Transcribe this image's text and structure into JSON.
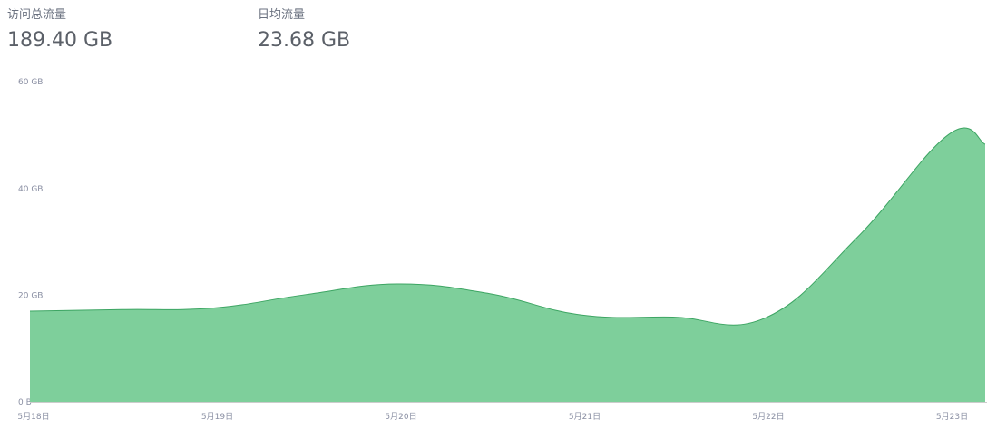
{
  "stats": {
    "total_label": "访问总流量",
    "total_value": "189.40 GB",
    "daily_label": "日均流量",
    "daily_value": "23.68 GB"
  },
  "chart_data": {
    "type": "area",
    "title": "",
    "xlabel": "",
    "ylabel": "",
    "x": [
      0,
      0.5,
      1,
      1.5,
      2,
      2.5,
      3,
      3.5,
      4,
      4.5,
      5,
      5.2
    ],
    "x_ticks": [
      0,
      1,
      2,
      3,
      4,
      5
    ],
    "categories": [
      "5月18日",
      "5月19日",
      "5月20日",
      "5月21日",
      "5月22日",
      "5月23日"
    ],
    "y_ticks": [
      0,
      20,
      40,
      60
    ],
    "y_tick_labels": [
      "0 B",
      "20 GB",
      "40 GB",
      "60 GB"
    ],
    "ylim": [
      0,
      60
    ],
    "series": [
      {
        "values": [
          17,
          17.3,
          17.6,
          20.1,
          22.1,
          20.3,
          16.3,
          15.9,
          15.7,
          30.7,
          50.1,
          48.3
        ]
      }
    ],
    "grid": false,
    "fill_color": "#7ecf9b",
    "line_color": "#3da563"
  }
}
